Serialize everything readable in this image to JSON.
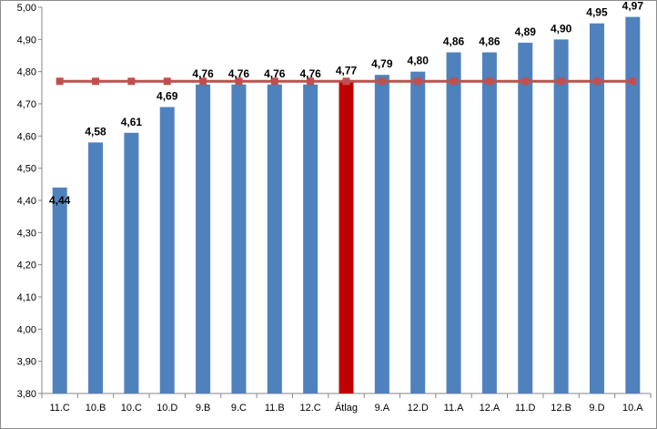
{
  "chart_data": {
    "type": "bar",
    "title": "",
    "xlabel": "",
    "ylabel": "",
    "ylim": [
      3.8,
      5.0
    ],
    "yticks": [
      "3,80",
      "3,90",
      "4,00",
      "4,10",
      "4,20",
      "4,30",
      "4,40",
      "4,50",
      "4,60",
      "4,70",
      "4,80",
      "4,90",
      "5,00"
    ],
    "grid": false,
    "legend": "none",
    "categories": [
      "11.C",
      "10.B",
      "10.C",
      "10.D",
      "9.B",
      "9.C",
      "11.B",
      "12.C",
      "Átlag",
      "9.A",
      "12.D",
      "11.A",
      "12.A",
      "11.D",
      "12.B",
      "9.D",
      "10.A"
    ],
    "series": [
      {
        "values": [
          4.44,
          4.58,
          4.61,
          4.69,
          4.76,
          4.76,
          4.76,
          4.76,
          4.77,
          4.79,
          4.8,
          4.86,
          4.86,
          4.89,
          4.9,
          4.95,
          4.97
        ],
        "labels": [
          "4,44",
          "4,58",
          "4,61",
          "4,69",
          "4,76",
          "4,76",
          "4,76",
          "4,76",
          "4,77",
          "4,79",
          "4,80",
          "4,86",
          "4,86",
          "4,89",
          "4,90",
          "4,95",
          "4,97"
        ],
        "color": "#4f81bd",
        "highlight_index": 8,
        "highlight_color": "#c00000"
      },
      {
        "type": "line",
        "value": 4.77,
        "color": "#c0504d",
        "marker": "square"
      }
    ]
  }
}
